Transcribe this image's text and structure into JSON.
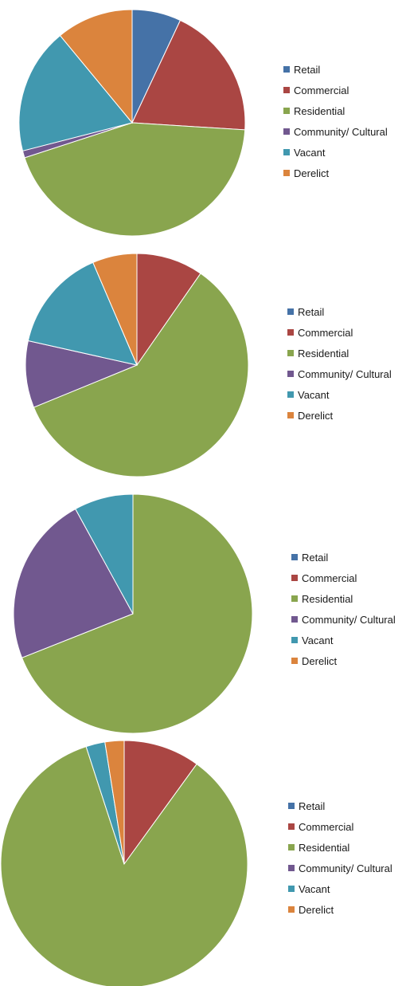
{
  "colors": {
    "Retail": "#4572a7",
    "Commercial": "#aa4643",
    "Residential": "#89a54e",
    "Community/ Cultural": "#71588f",
    "Vacant": "#4198af",
    "Derelict": "#db843d"
  },
  "chart_data": [
    {
      "type": "pie",
      "legend_position": "right",
      "categories": [
        "Retail",
        "Commercial",
        "Residential",
        "Community/ Cultural",
        "Vacant",
        "Derelict"
      ],
      "values": [
        7,
        19,
        44,
        1,
        18,
        11
      ]
    },
    {
      "type": "pie",
      "legend_position": "right",
      "categories": [
        "Retail",
        "Commercial",
        "Residential",
        "Community/ Cultural",
        "Vacant",
        "Derelict"
      ],
      "values": [
        0,
        9,
        55,
        9,
        14,
        6
      ]
    },
    {
      "type": "pie",
      "legend_position": "right",
      "categories": [
        "Retail",
        "Commercial",
        "Residential",
        "Community/ Cultural",
        "Vacant",
        "Derelict"
      ],
      "values": [
        0,
        0,
        69,
        23,
        8,
        0
      ]
    },
    {
      "type": "pie",
      "legend_position": "right",
      "categories": [
        "Retail",
        "Commercial",
        "Residential",
        "Community/ Cultural",
        "Vacant",
        "Derelict"
      ],
      "values": [
        0,
        10,
        85,
        0,
        2.5,
        2.5
      ]
    }
  ]
}
